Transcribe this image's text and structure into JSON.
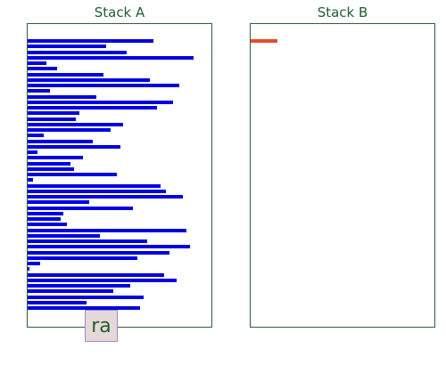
{
  "stack_a": {
    "title": "Stack A",
    "bar_color": "#0000e0",
    "values": [
      142,
      89,
      112,
      188,
      21,
      33,
      86,
      138,
      172,
      25,
      78,
      165,
      146,
      59,
      55,
      108,
      94,
      18,
      74,
      105,
      11,
      63,
      48,
      52,
      101,
      6,
      150,
      157,
      176,
      70,
      119,
      40,
      37,
      44,
      180,
      82,
      135,
      184,
      161,
      124,
      14,
      2,
      154,
      169,
      116,
      97,
      131,
      67,
      127
    ],
    "max_value": 208
  },
  "stack_b": {
    "title": "Stack B",
    "bar_color": "#e84a2c",
    "values": [
      30
    ],
    "max_value": 208
  },
  "operation": {
    "label": "ra"
  }
}
